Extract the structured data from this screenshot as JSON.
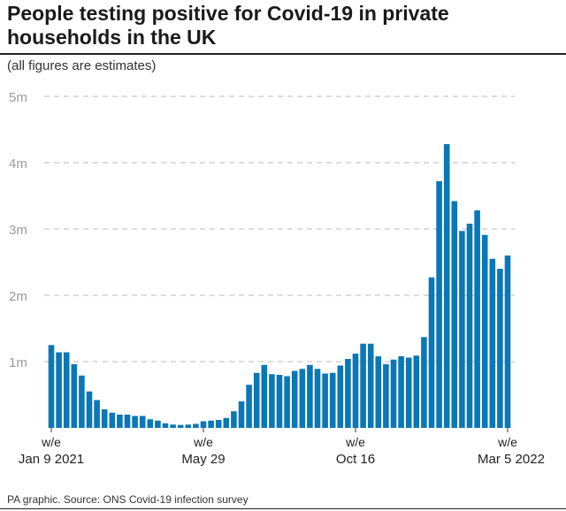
{
  "title": "People testing positive for Covid-19 in private households in the UK",
  "subtitle": "(all figures are estimates)",
  "footer": "PA graphic. Source: ONS Covid-19 infection survey",
  "colors": {
    "bar": "#0b77b7",
    "grid": "#bbbbbb",
    "tick_label": "#999999"
  },
  "chart_data": {
    "type": "bar",
    "title": "People testing positive for Covid-19 in private households in the UK",
    "subtitle": "(all figures are estimates)",
    "unit": "millions, weekly",
    "ylim": [
      0,
      5
    ],
    "yticks": [
      {
        "value": 1,
        "label": "1m"
      },
      {
        "value": 2,
        "label": "2m"
      },
      {
        "value": 3,
        "label": "3m"
      },
      {
        "value": 4,
        "label": "4m"
      },
      {
        "value": 5,
        "label": "5m"
      }
    ],
    "grid": true,
    "xtick_labels": [
      {
        "index": 0,
        "line1": "w/e",
        "line2": "Jan 9 2021"
      },
      {
        "index": 20,
        "line1": "w/e",
        "line2": "May 29"
      },
      {
        "index": 40,
        "line1": "w/e",
        "line2": "Oct 16"
      },
      {
        "index": 60,
        "line1": "w/e",
        "line2": "Mar 5 2022"
      }
    ],
    "values": [
      1.25,
      1.14,
      1.14,
      0.96,
      0.79,
      0.55,
      0.42,
      0.28,
      0.23,
      0.2,
      0.2,
      0.18,
      0.18,
      0.13,
      0.11,
      0.07,
      0.05,
      0.045,
      0.05,
      0.06,
      0.1,
      0.11,
      0.12,
      0.15,
      0.25,
      0.4,
      0.65,
      0.83,
      0.95,
      0.81,
      0.8,
      0.78,
      0.86,
      0.89,
      0.95,
      0.89,
      0.82,
      0.83,
      0.94,
      1.04,
      1.12,
      1.27,
      1.27,
      1.08,
      0.96,
      1.03,
      1.08,
      1.06,
      1.09,
      1.37,
      2.27,
      3.72,
      4.28,
      3.42,
      2.97,
      3.08,
      3.28,
      2.91,
      2.55,
      2.4,
      2.6
    ]
  }
}
